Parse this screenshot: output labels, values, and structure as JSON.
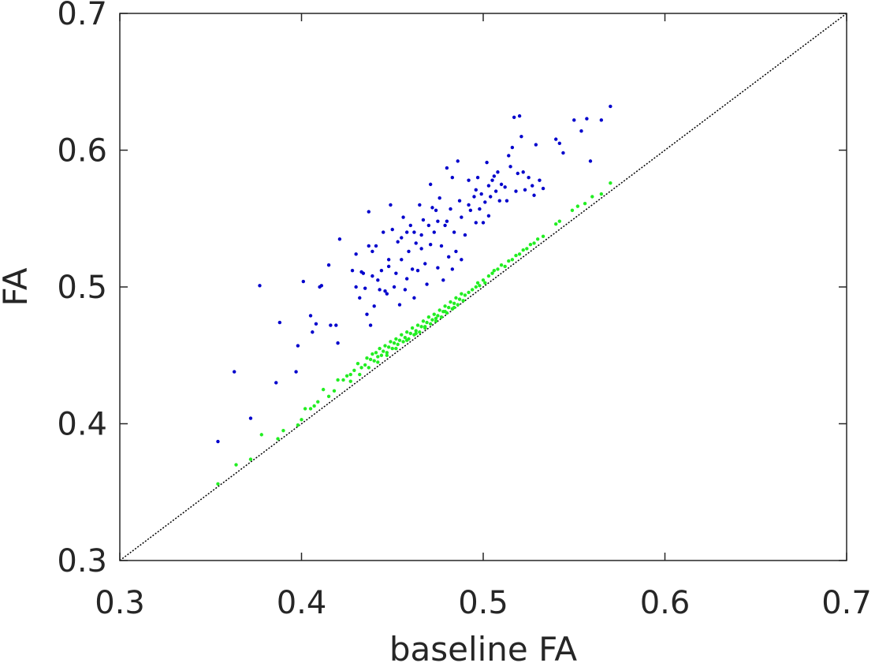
{
  "chart_data": {
    "type": "scatter",
    "title": "",
    "xlabel": "baseline FA",
    "ylabel": "FA",
    "xlim": [
      0.3,
      0.7
    ],
    "ylim": [
      0.3,
      0.7
    ],
    "xticks": [
      0.3,
      0.4,
      0.5,
      0.6,
      0.7
    ],
    "yticks": [
      0.3,
      0.4,
      0.5,
      0.6,
      0.7
    ],
    "xtick_labels": [
      "0.3",
      "0.4",
      "0.5",
      "0.6",
      "0.7"
    ],
    "ytick_labels": [
      "0.3",
      "0.4",
      "0.5",
      "0.6",
      "0.7"
    ],
    "grid": false,
    "legend": "none",
    "reference_line": {
      "style": "dotted",
      "color": "#000000",
      "from": [
        0.3,
        0.3
      ],
      "to": [
        0.7,
        0.7
      ]
    },
    "series": [
      {
        "color": "#0000cc",
        "points": [
          [
            0.354,
            0.387
          ],
          [
            0.363,
            0.438
          ],
          [
            0.372,
            0.404
          ],
          [
            0.377,
            0.501
          ],
          [
            0.386,
            0.43
          ],
          [
            0.388,
            0.474
          ],
          [
            0.397,
            0.438
          ],
          [
            0.398,
            0.457
          ],
          [
            0.401,
            0.504
          ],
          [
            0.405,
            0.479
          ],
          [
            0.406,
            0.467
          ],
          [
            0.408,
            0.473
          ],
          [
            0.41,
            0.5
          ],
          [
            0.411,
            0.501
          ],
          [
            0.415,
            0.516
          ],
          [
            0.416,
            0.472
          ],
          [
            0.419,
            0.472
          ],
          [
            0.42,
            0.459
          ],
          [
            0.421,
            0.535
          ],
          [
            0.428,
            0.512
          ],
          [
            0.43,
            0.524
          ],
          [
            0.432,
            0.492
          ],
          [
            0.433,
            0.511
          ],
          [
            0.435,
            0.499
          ],
          [
            0.436,
            0.48
          ],
          [
            0.437,
            0.53
          ],
          [
            0.437,
            0.555
          ],
          [
            0.438,
            0.472
          ],
          [
            0.439,
            0.508
          ],
          [
            0.44,
            0.486
          ],
          [
            0.441,
            0.53
          ],
          [
            0.442,
            0.505
          ],
          [
            0.444,
            0.512
          ],
          [
            0.445,
            0.54
          ],
          [
            0.446,
            0.497
          ],
          [
            0.447,
            0.495
          ],
          [
            0.448,
            0.52
          ],
          [
            0.449,
            0.56
          ],
          [
            0.45,
            0.542
          ],
          [
            0.451,
            0.5
          ],
          [
            0.452,
            0.51
          ],
          [
            0.453,
            0.533
          ],
          [
            0.454,
            0.487
          ],
          [
            0.455,
            0.52
          ],
          [
            0.456,
            0.551
          ],
          [
            0.457,
            0.498
          ],
          [
            0.458,
            0.506
          ],
          [
            0.459,
            0.526
          ],
          [
            0.46,
            0.545
          ],
          [
            0.461,
            0.513
          ],
          [
            0.462,
            0.492
          ],
          [
            0.463,
            0.532
          ],
          [
            0.464,
            0.512
          ],
          [
            0.465,
            0.56
          ],
          [
            0.466,
            0.528
          ],
          [
            0.467,
            0.549
          ],
          [
            0.468,
            0.517
          ],
          [
            0.469,
            0.502
          ],
          [
            0.47,
            0.545
          ],
          [
            0.471,
            0.575
          ],
          [
            0.472,
            0.558
          ],
          [
            0.473,
            0.54
          ],
          [
            0.474,
            0.556
          ],
          [
            0.475,
            0.514
          ],
          [
            0.476,
            0.565
          ],
          [
            0.477,
            0.53
          ],
          [
            0.478,
            0.505
          ],
          [
            0.479,
            0.545
          ],
          [
            0.48,
            0.587
          ],
          [
            0.481,
            0.522
          ],
          [
            0.482,
            0.557
          ],
          [
            0.483,
            0.58
          ],
          [
            0.484,
            0.54
          ],
          [
            0.485,
            0.526
          ],
          [
            0.486,
            0.592
          ],
          [
            0.487,
            0.563
          ],
          [
            0.488,
            0.551
          ],
          [
            0.49,
            0.538
          ],
          [
            0.492,
            0.578
          ],
          [
            0.493,
            0.556
          ],
          [
            0.495,
            0.566
          ],
          [
            0.496,
            0.571
          ],
          [
            0.497,
            0.58
          ],
          [
            0.498,
            0.557
          ],
          [
            0.499,
            0.568
          ],
          [
            0.5,
            0.547
          ],
          [
            0.501,
            0.562
          ],
          [
            0.502,
            0.591
          ],
          [
            0.503,
            0.574
          ],
          [
            0.504,
            0.566
          ],
          [
            0.505,
            0.578
          ],
          [
            0.506,
            0.581
          ],
          [
            0.507,
            0.57
          ],
          [
            0.508,
            0.584
          ],
          [
            0.509,
            0.563
          ],
          [
            0.51,
            0.575
          ],
          [
            0.512,
            0.573
          ],
          [
            0.513,
            0.563
          ],
          [
            0.514,
            0.596
          ],
          [
            0.515,
            0.588
          ],
          [
            0.516,
            0.602
          ],
          [
            0.517,
            0.624
          ],
          [
            0.518,
            0.57
          ],
          [
            0.519,
            0.583
          ],
          [
            0.52,
            0.625
          ],
          [
            0.521,
            0.61
          ],
          [
            0.522,
            0.584
          ],
          [
            0.523,
            0.571
          ],
          [
            0.525,
            0.58
          ],
          [
            0.527,
            0.574
          ],
          [
            0.528,
            0.567
          ],
          [
            0.529,
            0.604
          ],
          [
            0.531,
            0.578
          ],
          [
            0.533,
            0.572
          ],
          [
            0.54,
            0.608
          ],
          [
            0.542,
            0.605
          ],
          [
            0.544,
            0.598
          ],
          [
            0.55,
            0.622
          ],
          [
            0.554,
            0.614
          ],
          [
            0.557,
            0.623
          ],
          [
            0.559,
            0.592
          ],
          [
            0.565,
            0.622
          ],
          [
            0.57,
            0.632
          ],
          [
            0.488,
            0.52
          ],
          [
            0.483,
            0.513
          ],
          [
            0.492,
            0.56
          ],
          [
            0.48,
            0.548
          ],
          [
            0.462,
            0.54
          ],
          [
            0.455,
            0.536
          ],
          [
            0.448,
            0.515
          ],
          [
            0.443,
            0.498
          ],
          [
            0.439,
            0.526
          ],
          [
            0.434,
            0.51
          ],
          [
            0.43,
            0.5
          ],
          [
            0.458,
            0.54
          ],
          [
            0.466,
            0.538
          ],
          [
            0.471,
            0.531
          ],
          [
            0.475,
            0.548
          ],
          [
            0.496,
            0.547
          ],
          [
            0.503,
            0.552
          ]
        ]
      },
      {
        "color": "#22ee22",
        "points": [
          [
            0.354,
            0.356
          ],
          [
            0.364,
            0.37
          ],
          [
            0.372,
            0.374
          ],
          [
            0.378,
            0.392
          ],
          [
            0.387,
            0.389
          ],
          [
            0.39,
            0.395
          ],
          [
            0.398,
            0.399
          ],
          [
            0.4,
            0.403
          ],
          [
            0.402,
            0.411
          ],
          [
            0.405,
            0.411
          ],
          [
            0.407,
            0.413
          ],
          [
            0.409,
            0.416
          ],
          [
            0.412,
            0.425
          ],
          [
            0.415,
            0.42
          ],
          [
            0.418,
            0.424
          ],
          [
            0.42,
            0.432
          ],
          [
            0.423,
            0.432
          ],
          [
            0.425,
            0.435
          ],
          [
            0.427,
            0.436
          ],
          [
            0.429,
            0.439
          ],
          [
            0.431,
            0.444
          ],
          [
            0.433,
            0.441
          ],
          [
            0.435,
            0.443
          ],
          [
            0.436,
            0.448
          ],
          [
            0.438,
            0.447
          ],
          [
            0.439,
            0.451
          ],
          [
            0.44,
            0.446
          ],
          [
            0.441,
            0.452
          ],
          [
            0.442,
            0.449
          ],
          [
            0.443,
            0.455
          ],
          [
            0.444,
            0.45
          ],
          [
            0.445,
            0.453
          ],
          [
            0.446,
            0.457
          ],
          [
            0.447,
            0.452
          ],
          [
            0.448,
            0.456
          ],
          [
            0.449,
            0.46
          ],
          [
            0.45,
            0.455
          ],
          [
            0.451,
            0.459
          ],
          [
            0.452,
            0.462
          ],
          [
            0.453,
            0.458
          ],
          [
            0.454,
            0.461
          ],
          [
            0.455,
            0.465
          ],
          [
            0.456,
            0.46
          ],
          [
            0.457,
            0.463
          ],
          [
            0.458,
            0.467
          ],
          [
            0.459,
            0.462
          ],
          [
            0.46,
            0.466
          ],
          [
            0.461,
            0.47
          ],
          [
            0.462,
            0.465
          ],
          [
            0.463,
            0.468
          ],
          [
            0.464,
            0.472
          ],
          [
            0.465,
            0.467
          ],
          [
            0.466,
            0.471
          ],
          [
            0.467,
            0.475
          ],
          [
            0.468,
            0.47
          ],
          [
            0.469,
            0.474
          ],
          [
            0.47,
            0.478
          ],
          [
            0.471,
            0.473
          ],
          [
            0.472,
            0.476
          ],
          [
            0.473,
            0.48
          ],
          [
            0.474,
            0.475
          ],
          [
            0.475,
            0.479
          ],
          [
            0.476,
            0.483
          ],
          [
            0.477,
            0.478
          ],
          [
            0.478,
            0.482
          ],
          [
            0.479,
            0.486
          ],
          [
            0.48,
            0.481
          ],
          [
            0.481,
            0.485
          ],
          [
            0.482,
            0.489
          ],
          [
            0.483,
            0.484
          ],
          [
            0.484,
            0.488
          ],
          [
            0.485,
            0.492
          ],
          [
            0.486,
            0.487
          ],
          [
            0.487,
            0.491
          ],
          [
            0.488,
            0.495
          ],
          [
            0.489,
            0.49
          ],
          [
            0.49,
            0.494
          ],
          [
            0.492,
            0.496
          ],
          [
            0.494,
            0.498
          ],
          [
            0.496,
            0.5
          ],
          [
            0.497,
            0.503
          ],
          [
            0.498,
            0.501
          ],
          [
            0.5,
            0.505
          ],
          [
            0.501,
            0.503
          ],
          [
            0.503,
            0.508
          ],
          [
            0.505,
            0.51
          ],
          [
            0.506,
            0.512
          ],
          [
            0.508,
            0.513
          ],
          [
            0.51,
            0.516
          ],
          [
            0.512,
            0.515
          ],
          [
            0.514,
            0.519
          ],
          [
            0.516,
            0.52
          ],
          [
            0.518,
            0.523
          ],
          [
            0.52,
            0.524
          ],
          [
            0.522,
            0.527
          ],
          [
            0.524,
            0.528
          ],
          [
            0.526,
            0.531
          ],
          [
            0.528,
            0.532
          ],
          [
            0.53,
            0.535
          ],
          [
            0.533,
            0.537
          ],
          [
            0.54,
            0.546
          ],
          [
            0.542,
            0.548
          ],
          [
            0.549,
            0.556
          ],
          [
            0.552,
            0.559
          ],
          [
            0.556,
            0.561
          ],
          [
            0.56,
            0.566
          ],
          [
            0.565,
            0.568
          ],
          [
            0.57,
            0.576
          ],
          [
            0.447,
            0.45
          ],
          [
            0.452,
            0.455
          ],
          [
            0.458,
            0.461
          ],
          [
            0.463,
            0.466
          ],
          [
            0.468,
            0.471
          ],
          [
            0.474,
            0.477
          ],
          [
            0.479,
            0.482
          ],
          [
            0.484,
            0.485
          ],
          [
            0.437,
            0.441
          ],
          [
            0.432,
            0.436
          ],
          [
            0.427,
            0.431
          ],
          [
            0.442,
            0.445
          ]
        ]
      }
    ]
  }
}
